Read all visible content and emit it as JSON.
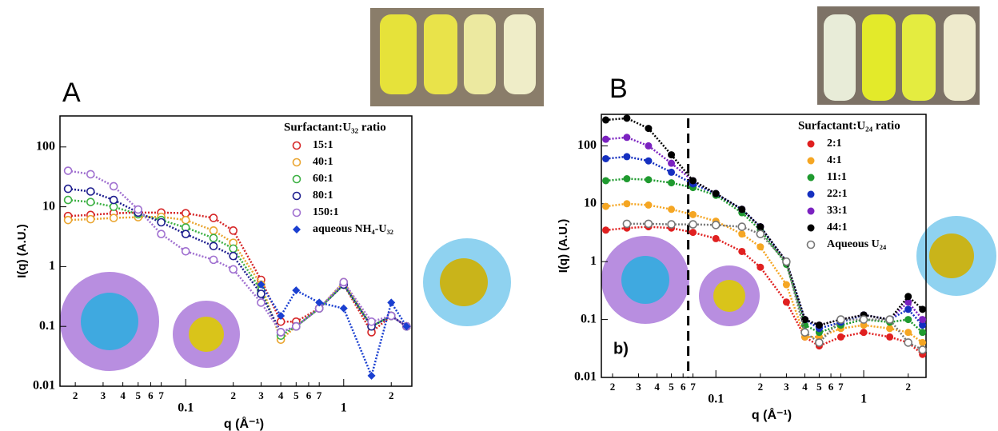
{
  "chart_data": [
    {
      "type": "scatter",
      "panel_label": "A",
      "x_label": "q (Å⁻¹)",
      "y_label": "I(q) (A.U.)",
      "legend_title": "Surfactant:U₃₂ ratio",
      "legend": "upper right",
      "log_x": true,
      "log_y": true,
      "xlim": [
        0.016,
        2.7
      ],
      "ylim": [
        0.01,
        330
      ],
      "xticks": [
        {
          "value": 0.02,
          "label": "2"
        },
        {
          "value": 0.03,
          "label": "3"
        },
        {
          "value": 0.04,
          "label": "4"
        },
        {
          "value": 0.05,
          "label": "5"
        },
        {
          "value": 0.06,
          "label": "6"
        },
        {
          "value": 0.07,
          "label": "7"
        },
        0.1,
        {
          "value": 0.2,
          "label": "2"
        },
        {
          "value": 0.3,
          "label": "3"
        },
        {
          "value": 0.4,
          "label": "4"
        },
        {
          "value": 0.5,
          "label": "5"
        },
        {
          "value": 0.6,
          "label": "6"
        },
        {
          "value": 0.7,
          "label": "7"
        },
        1,
        {
          "value": 2,
          "label": "2"
        }
      ],
      "yticks": [
        0.01,
        0.1,
        1,
        10,
        100
      ],
      "x": [
        0.018,
        0.025,
        0.035,
        0.05,
        0.07,
        0.1,
        0.15,
        0.2,
        0.3,
        0.4,
        0.5,
        0.7,
        1.0,
        1.5,
        2.0,
        2.5
      ],
      "series": [
        {
          "name": "15:1",
          "color": "#d62728",
          "marker": "open-circle",
          "values": [
            7,
            7.3,
            7.8,
            8,
            8,
            7.8,
            6.5,
            4,
            0.6,
            0.12,
            0.12,
            0.2,
            0.5,
            0.08,
            0.15,
            0.1
          ]
        },
        {
          "name": "40:1",
          "color": "#eaa530",
          "marker": "open-circle",
          "values": [
            6,
            6.2,
            6.5,
            6.7,
            6.8,
            6,
            4,
            2.5,
            0.5,
            0.06,
            0.1,
            0.2,
            0.55,
            0.1,
            0.15,
            0.1
          ]
        },
        {
          "name": "60:1",
          "color": "#3cb043",
          "marker": "open-circle",
          "values": [
            13,
            12,
            10,
            7.5,
            6,
            4.5,
            3,
            2,
            0.4,
            0.07,
            0.1,
            0.2,
            0.5,
            0.1,
            0.15,
            0.1
          ]
        },
        {
          "name": "80:1",
          "color": "#1f1f8f",
          "marker": "open-circle",
          "values": [
            20,
            18,
            13,
            8,
            5.5,
            3.5,
            2.2,
            1.5,
            0.35,
            0.08,
            0.1,
            0.2,
            0.5,
            0.1,
            0.15,
            0.1
          ]
        },
        {
          "name": "150:1",
          "color": "#a070d0",
          "marker": "open-circle",
          "values": [
            40,
            35,
            22,
            9,
            3.5,
            1.8,
            1.3,
            0.9,
            0.25,
            0.08,
            0.1,
            0.2,
            0.55,
            0.12,
            0.15,
            0.1
          ]
        },
        {
          "name": "aqueous NH₄-U₃₂",
          "color": "#1a3fd0",
          "marker": "diamond",
          "values": [
            null,
            null,
            null,
            null,
            null,
            null,
            null,
            null,
            0.5,
            0.15,
            0.4,
            0.25,
            0.2,
            0.015,
            0.25,
            0.1
          ]
        }
      ]
    },
    {
      "type": "scatter",
      "panel_label": "B",
      "x_label": "q (Å⁻¹)",
      "y_label": "I(q) (A.U.)",
      "legend_title": "Surfactant:U₂₄ ratio",
      "legend": "upper right",
      "log_x": true,
      "log_y": true,
      "annotation": "b)",
      "vline": 0.065,
      "xlim": [
        0.0168,
        2.64
      ],
      "ylim": [
        0.01,
        350
      ],
      "xticks": [
        {
          "value": 0.02,
          "label": "2"
        },
        {
          "value": 0.03,
          "label": "3"
        },
        {
          "value": 0.04,
          "label": "4"
        },
        {
          "value": 0.05,
          "label": "5"
        },
        {
          "value": 0.06,
          "label": "6"
        },
        {
          "value": 0.07,
          "label": "7"
        },
        0.1,
        {
          "value": 0.2,
          "label": "2"
        },
        {
          "value": 0.3,
          "label": "3"
        },
        {
          "value": 0.4,
          "label": "4"
        },
        {
          "value": 0.5,
          "label": "5"
        },
        {
          "value": 0.6,
          "label": "6"
        },
        {
          "value": 0.7,
          "label": "7"
        },
        1,
        {
          "value": 2,
          "label": "2"
        }
      ],
      "yticks": [
        0.01,
        0.1,
        1,
        10,
        100
      ],
      "x": [
        0.018,
        0.025,
        0.035,
        0.05,
        0.07,
        0.1,
        0.15,
        0.2,
        0.3,
        0.4,
        0.5,
        0.7,
        1.0,
        1.5,
        2.0,
        2.5
      ],
      "series": [
        {
          "name": "2:1",
          "color": "#e02020",
          "marker": "circle",
          "values": [
            3.5,
            3.8,
            4,
            3.8,
            3.2,
            2.5,
            1.5,
            0.8,
            0.2,
            0.05,
            0.035,
            0.05,
            0.06,
            0.05,
            0.04,
            0.025
          ]
        },
        {
          "name": "4:1",
          "color": "#f5a623",
          "marker": "circle",
          "values": [
            9,
            10,
            9.5,
            8,
            6.5,
            5,
            3,
            1.8,
            0.4,
            0.05,
            0.05,
            0.07,
            0.08,
            0.07,
            0.06,
            0.04
          ]
        },
        {
          "name": "11:1",
          "color": "#1f9a2f",
          "marker": "circle",
          "values": [
            25,
            27,
            26,
            23,
            19,
            14,
            7,
            3.5,
            0.9,
            0.08,
            0.06,
            0.08,
            0.1,
            0.09,
            0.1,
            0.06
          ]
        },
        {
          "name": "22:1",
          "color": "#1530c0",
          "marker": "circle",
          "values": [
            60,
            65,
            55,
            35,
            22,
            15,
            8,
            4,
            1,
            0.1,
            0.07,
            0.09,
            0.12,
            0.1,
            0.15,
            0.08
          ]
        },
        {
          "name": "33:1",
          "color": "#7b22c0",
          "marker": "circle",
          "values": [
            130,
            140,
            100,
            50,
            25,
            15,
            8,
            4,
            1,
            0.1,
            0.08,
            0.1,
            0.12,
            0.1,
            0.2,
            0.1
          ]
        },
        {
          "name": "44:1",
          "color": "#000000",
          "marker": "circle",
          "values": [
            280,
            300,
            200,
            70,
            25,
            15,
            8,
            4,
            1,
            0.1,
            0.08,
            0.1,
            0.12,
            0.1,
            0.25,
            0.15
          ]
        },
        {
          "name": "Aqueous U₂₄",
          "color": "#777777",
          "marker": "open-circle",
          "values": [
            null,
            4.5,
            4.5,
            4.4,
            4.4,
            4.3,
            4,
            3,
            1,
            0.06,
            0.04,
            0.1,
            0.1,
            0.1,
            0.04,
            0.03
          ]
        }
      ]
    }
  ]
}
